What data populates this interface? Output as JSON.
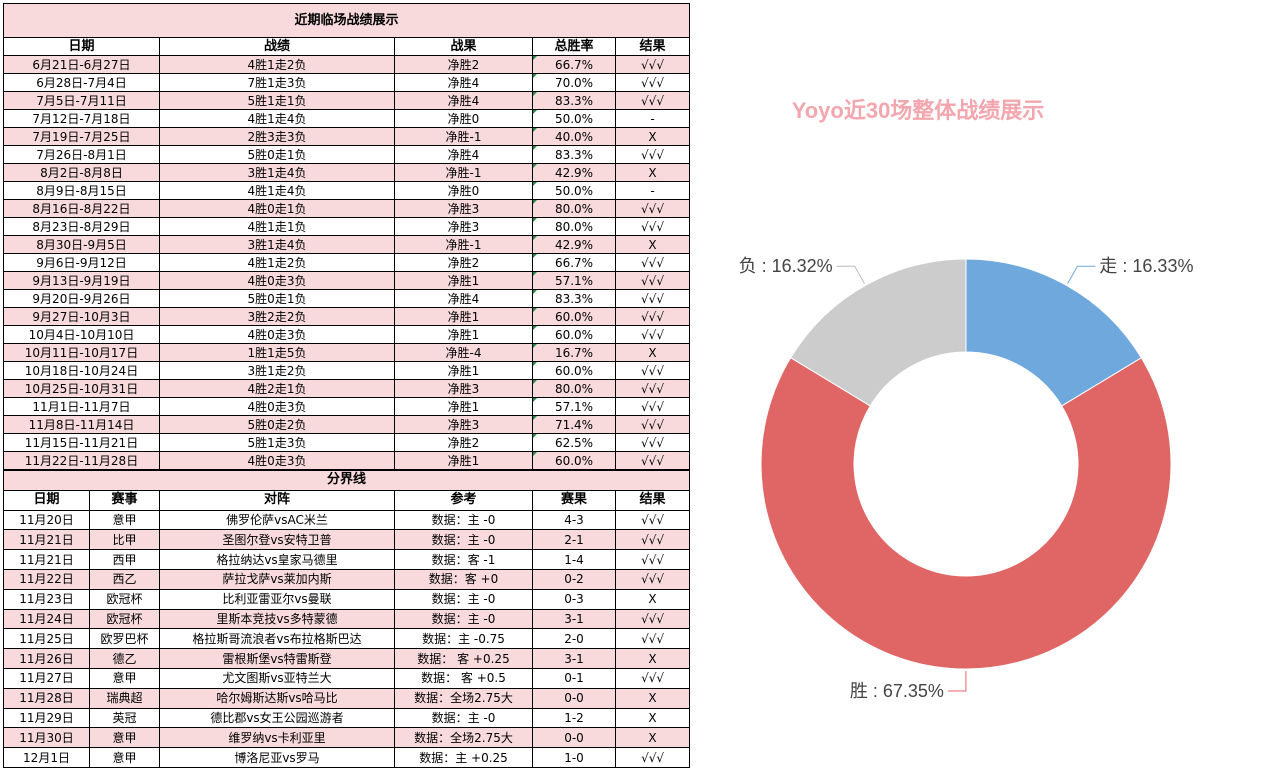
{
  "table1": {
    "title": "近期临场战绩展示",
    "headers": [
      "日期",
      "战绩",
      "战果",
      "总胜率",
      "结果"
    ],
    "rows": [
      [
        "6月21日-6月27日",
        "4胜1走2负",
        "净胜2",
        "66.7%",
        "√√√"
      ],
      [
        "6月28日-7月4日",
        "7胜1走3负",
        "净胜4",
        "70.0%",
        "√√√"
      ],
      [
        "7月5日-7月11日",
        "5胜1走1负",
        "净胜4",
        "83.3%",
        "√√√"
      ],
      [
        "7月12日-7月18日",
        "4胜1走4负",
        "净胜0",
        "50.0%",
        "-"
      ],
      [
        "7月19日-7月25日",
        "2胜3走3负",
        "净胜-1",
        "40.0%",
        "X"
      ],
      [
        "7月26日-8月1日",
        "5胜0走1负",
        "净胜4",
        "83.3%",
        "√√√"
      ],
      [
        "8月2日-8月8日",
        "3胜1走4负",
        "净胜-1",
        "42.9%",
        "X"
      ],
      [
        "8月9日-8月15日",
        "4胜1走4负",
        "净胜0",
        "50.0%",
        "-"
      ],
      [
        "8月16日-8月22日",
        "4胜0走1负",
        "净胜3",
        "80.0%",
        "√√√"
      ],
      [
        "8月23日-8月29日",
        "4胜1走1负",
        "净胜3",
        "80.0%",
        "√√√"
      ],
      [
        "8月30日-9月5日",
        "3胜1走4负",
        "净胜-1",
        "42.9%",
        "X"
      ],
      [
        "9月6日-9月12日",
        "4胜1走2负",
        "净胜2",
        "66.7%",
        "√√√"
      ],
      [
        "9月13日-9月19日",
        "4胜0走3负",
        "净胜1",
        "57.1%",
        "√√√"
      ],
      [
        "9月20日-9月26日",
        "5胜0走1负",
        "净胜4",
        "83.3%",
        "√√√"
      ],
      [
        "9月27日-10月3日",
        "3胜2走2负",
        "净胜1",
        "60.0%",
        "√√√"
      ],
      [
        "10月4日-10月10日",
        "4胜0走3负",
        "净胜1",
        "60.0%",
        "√√√"
      ],
      [
        "10月11日-10月17日",
        "1胜1走5负",
        "净胜-4",
        "16.7%",
        "X"
      ],
      [
        "10月18日-10月24日",
        "3胜1走2负",
        "净胜1",
        "60.0%",
        "√√√"
      ],
      [
        "10月25日-10月31日",
        "4胜2走1负",
        "净胜3",
        "80.0%",
        "√√√"
      ],
      [
        "11月1日-11月7日",
        "4胜0走3负",
        "净胜1",
        "57.1%",
        "√√√"
      ],
      [
        "11月8日-11月14日",
        "5胜0走2负",
        "净胜3",
        "71.4%",
        "√√√"
      ],
      [
        "11月15日-11月21日",
        "5胜1走3负",
        "净胜2",
        "62.5%",
        "√√√"
      ],
      [
        "11月22日-11月28日",
        "4胜0走3负",
        "净胜1",
        "60.0%",
        "√√√"
      ]
    ]
  },
  "table2": {
    "title": "分界线",
    "headers": [
      "日期",
      "赛事",
      "对阵",
      "参考",
      "赛果",
      "结果"
    ],
    "rows": [
      [
        "11月20日",
        "意甲",
        "佛罗伦萨vsAC米兰",
        "数据：主 -0",
        "4-3",
        "√√√"
      ],
      [
        "11月21日",
        "比甲",
        "圣图尔登vs安特卫普",
        "数据：主 -0",
        "2-1",
        "√√√"
      ],
      [
        "11月21日",
        "西甲",
        "格拉纳达vs皇家马德里",
        "数据：客 -1",
        "1-4",
        "√√√"
      ],
      [
        "11月22日",
        "西乙",
        "萨拉戈萨vs莱加内斯",
        "数据：客 +0",
        "0-2",
        "√√√"
      ],
      [
        "11月23日",
        "欧冠杯",
        "比利亚雷亚尔vs曼联",
        "数据：主 -0",
        "0-3",
        "X"
      ],
      [
        "11月24日",
        "欧冠杯",
        "里斯本竞技vs多特蒙德",
        "数据：主 -0",
        "3-1",
        "√√√"
      ],
      [
        "11月25日",
        "欧罗巴杯",
        "格拉斯哥流浪者vs布拉格斯巴达",
        "数据：主 -0.75",
        "2-0",
        "√√√"
      ],
      [
        "11月26日",
        "德乙",
        "雷根斯堡vs特雷斯登",
        "数据： 客 +0.25",
        "3-1",
        "X"
      ],
      [
        "11月27日",
        "意甲",
        "尤文图斯vs亚特兰大",
        "数据： 客 +0.5",
        "0-1",
        "√√√"
      ],
      [
        "11月28日",
        "瑞典超",
        "哈尔姆斯达斯vs哈马比",
        "数据：全场2.75大",
        "0-0",
        "X"
      ],
      [
        "11月29日",
        "英冠",
        "德比郡vs女王公园巡游者",
        "数据：主 -0",
        "1-2",
        "X"
      ],
      [
        "11月30日",
        "意甲",
        "维罗纳vs卡利亚里",
        "数据：全场2.75大",
        "0-0",
        "X"
      ],
      [
        "12月1日",
        "意甲",
        "博洛尼亚vs罗马",
        "数据：主 +0.25",
        "1-0",
        "√√√"
      ]
    ]
  },
  "colors": {
    "pink_row": "#f8dadd",
    "title_bg": "#f8dadd",
    "marker": "#1e8a3a"
  },
  "chart_data": {
    "type": "pie",
    "title": "Yoyo近30场整体战绩展示",
    "donut": true,
    "slices": [
      {
        "label": "走",
        "value": 16.33,
        "display": "走 : 16.33%",
        "color": "#6fa8dc"
      },
      {
        "label": "胜",
        "value": 67.35,
        "display": "胜 : 67.35%",
        "color": "#e06666"
      },
      {
        "label": "负",
        "value": 16.32,
        "display": "负 : 16.32%",
        "color": "#cccccc"
      }
    ],
    "title_color": "#f4a6ae"
  }
}
